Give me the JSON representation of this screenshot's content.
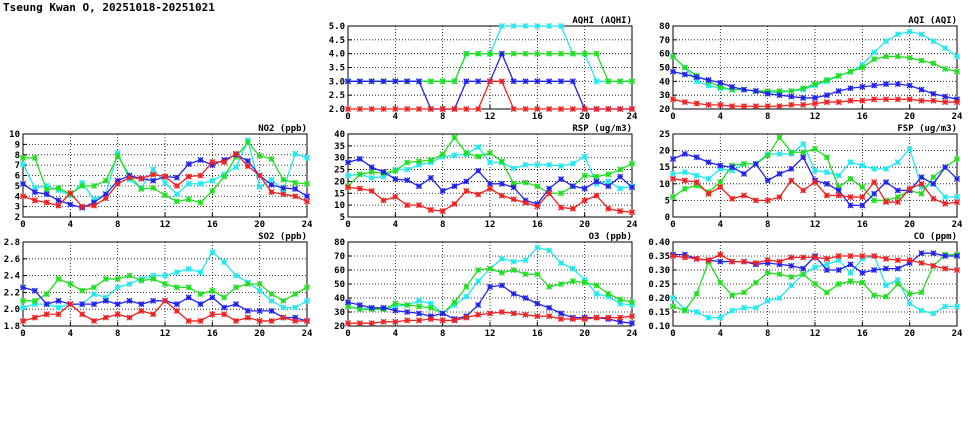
{
  "title": "Tseung Kwan O, 20251018-20251021",
  "colors": {
    "cyan": "#22e8f0",
    "green": "#22dd22",
    "blue": "#2222ee",
    "red": "#ee2222"
  },
  "chart_data": [
    {
      "id": "aqhi",
      "type": "line",
      "title": "AQHI (AQHI)",
      "ylim": [
        2.0,
        5.0
      ],
      "yticks": [
        2.0,
        2.5,
        3.0,
        3.5,
        4.0,
        4.5,
        5.0
      ],
      "ydec": 1,
      "xlim": [
        0,
        24
      ],
      "xticks": [
        0,
        4,
        8,
        12,
        16,
        20,
        24
      ],
      "series": [
        {
          "color": "cyan",
          "values": [
            3,
            3,
            3,
            3,
            3,
            3,
            3,
            3,
            3,
            3,
            4,
            4,
            4,
            5,
            5,
            5,
            5,
            5,
            5,
            4,
            4,
            3,
            3,
            3,
            3
          ]
        },
        {
          "color": "green",
          "values": [
            3,
            3,
            3,
            3,
            3,
            3,
            3,
            3,
            3,
            3,
            4,
            4,
            4,
            4,
            4,
            4,
            4,
            4,
            4,
            4,
            4,
            4,
            3,
            3,
            3
          ]
        },
        {
          "color": "blue",
          "values": [
            3,
            3,
            3,
            3,
            3,
            3,
            3,
            2,
            2,
            2,
            3,
            3,
            3,
            4,
            3,
            3,
            3,
            3,
            3,
            3,
            2,
            2,
            2,
            2,
            2
          ]
        },
        {
          "color": "red",
          "values": [
            2,
            2,
            2,
            2,
            2,
            2,
            2,
            2,
            2,
            2,
            2,
            2,
            3,
            3,
            2,
            2,
            2,
            2,
            2,
            2,
            2,
            2,
            2,
            2,
            2
          ]
        }
      ]
    },
    {
      "id": "aqi",
      "type": "line",
      "title": "AQI (AQI)",
      "ylim": [
        20,
        80
      ],
      "yticks": [
        20,
        30,
        40,
        50,
        60,
        70,
        80
      ],
      "ydec": 0,
      "xlim": [
        0,
        24
      ],
      "xticks": [
        0,
        4,
        8,
        12,
        16,
        20,
        24
      ],
      "series": [
        {
          "color": "cyan",
          "values": [
            58,
            50,
            40,
            37,
            35,
            34,
            34,
            33,
            32,
            32,
            33,
            34,
            37,
            40,
            44,
            47,
            52,
            61,
            69,
            74,
            76,
            74,
            69,
            64,
            58
          ]
        },
        {
          "color": "green",
          "values": [
            58,
            50,
            44,
            40,
            36,
            34,
            34,
            33,
            33,
            33,
            33,
            35,
            38,
            41,
            44,
            47,
            50,
            56,
            58,
            58,
            57,
            55,
            53,
            49,
            47
          ]
        },
        {
          "color": "blue",
          "values": [
            47,
            45,
            43,
            41,
            39,
            36,
            34,
            33,
            31,
            30,
            29,
            28,
            28,
            30,
            33,
            35,
            36,
            37,
            38,
            38,
            37,
            34,
            31,
            29,
            27
          ]
        },
        {
          "color": "red",
          "values": [
            27,
            25,
            24,
            23,
            23,
            22,
            22,
            22,
            22,
            22,
            23,
            23,
            24,
            25,
            25,
            26,
            26,
            27,
            27,
            27,
            27,
            26,
            26,
            25,
            25
          ]
        }
      ]
    },
    {
      "id": "no2",
      "type": "line",
      "title": "NO2 (ppb)",
      "ylim": [
        2,
        10
      ],
      "yticks": [
        2,
        3,
        4,
        5,
        6,
        7,
        8,
        9,
        10
      ],
      "ydec": 0,
      "xlim": [
        0,
        24
      ],
      "xticks": [
        0,
        4,
        8,
        12,
        16,
        20,
        24
      ],
      "series": [
        {
          "color": "cyan",
          "values": [
            7.1,
            4.8,
            5.0,
            4.6,
            4.1,
            5.3,
            3.7,
            4.2,
            8.2,
            5.6,
            4.8,
            6.6,
            5.3,
            4.2,
            5.2,
            5.2,
            5.5,
            6.1,
            6.8,
            9.4,
            4.9,
            5.6,
            4.6,
            8.1,
            7.7
          ]
        },
        {
          "color": "green",
          "values": [
            7.7,
            7.7,
            4.6,
            4.8,
            4.2,
            5.0,
            5.0,
            5.5,
            7.9,
            6.0,
            4.7,
            4.8,
            4.1,
            3.5,
            3.7,
            3.4,
            4.5,
            5.9,
            7.8,
            9.2,
            7.9,
            7.6,
            5.6,
            5.3,
            5.2
          ]
        },
        {
          "color": "blue",
          "values": [
            5.2,
            4.4,
            4.2,
            3.6,
            3.2,
            2.9,
            3.4,
            4.2,
            5.5,
            6.0,
            5.7,
            5.5,
            5.9,
            5.8,
            7.1,
            7.5,
            7.0,
            7.5,
            8.0,
            7.4,
            6.0,
            5.1,
            4.8,
            4.7,
            4.0
          ]
        },
        {
          "color": "red",
          "values": [
            4.0,
            3.6,
            3.4,
            3.1,
            4.3,
            3.0,
            3.1,
            3.8,
            5.2,
            5.8,
            5.7,
            6.1,
            5.9,
            5.0,
            5.9,
            6.0,
            7.3,
            7.3,
            8.1,
            6.9,
            6.0,
            4.4,
            4.2,
            4.0,
            3.5
          ]
        }
      ]
    },
    {
      "id": "rsp",
      "type": "line",
      "title": "RSP (ug/m3)",
      "ylim": [
        5,
        40
      ],
      "yticks": [
        5,
        10,
        15,
        20,
        25,
        30,
        35,
        40
      ],
      "ydec": 0,
      "xlim": [
        0,
        24
      ],
      "xticks": [
        0,
        4,
        8,
        12,
        16,
        20,
        24
      ],
      "series": [
        {
          "color": "cyan",
          "values": [
            22.5,
            23,
            21.5,
            22,
            25,
            25,
            27,
            28,
            30.5,
            31,
            31.5,
            34.5,
            28,
            28,
            25.5,
            27,
            27,
            27,
            26.5,
            27.5,
            30.5,
            19,
            20,
            17,
            18
          ]
        },
        {
          "color": "green",
          "values": [
            18,
            23,
            24,
            23.5,
            24.5,
            28,
            28.5,
            29,
            31.5,
            38.5,
            32,
            30.5,
            32,
            28.5,
            19,
            19.5,
            18,
            15,
            15,
            18,
            22.5,
            22,
            23,
            25,
            27.5
          ]
        },
        {
          "color": "blue",
          "values": [
            28,
            29.5,
            26,
            24,
            21,
            20.5,
            18,
            21.5,
            16,
            18,
            20,
            24.5,
            19,
            19,
            17.5,
            12,
            10.5,
            17,
            21,
            18,
            17,
            20,
            18,
            22,
            17.5
          ]
        },
        {
          "color": "red",
          "values": [
            17.5,
            17,
            16,
            12,
            13.5,
            10,
            10,
            8,
            7.5,
            10.5,
            16,
            14.5,
            17,
            14,
            12.5,
            11,
            9.5,
            15,
            9,
            8.5,
            12,
            14,
            8.5,
            7.5,
            7
          ]
        }
      ]
    },
    {
      "id": "fsp",
      "type": "line",
      "title": "FSP (ug/m3)",
      "ylim": [
        0,
        25
      ],
      "yticks": [
        0,
        5,
        10,
        15,
        20,
        25
      ],
      "ydec": 0,
      "xlim": [
        0,
        24
      ],
      "xticks": [
        0,
        4,
        8,
        12,
        16,
        20,
        24
      ],
      "series": [
        {
          "color": "cyan",
          "values": [
            13,
            13.5,
            12.5,
            11.5,
            14.5,
            14,
            16,
            16,
            19,
            19,
            19,
            22,
            14,
            13.5,
            12.5,
            16.5,
            15.5,
            14.5,
            14.5,
            16.5,
            20.5,
            9,
            10,
            6,
            6
          ]
        },
        {
          "color": "green",
          "values": [
            6,
            8.5,
            9.5,
            7.5,
            10.5,
            15.5,
            16,
            16,
            18.5,
            24,
            19.5,
            19.5,
            20.5,
            18,
            9,
            11.5,
            9,
            5,
            5,
            6,
            8,
            7,
            12,
            15,
            17.5
          ]
        },
        {
          "color": "blue",
          "values": [
            17.5,
            19,
            18,
            16.5,
            15.5,
            15,
            13,
            16,
            11,
            13,
            14.5,
            18,
            11,
            10,
            8,
            3.5,
            3.5,
            7,
            10.5,
            8,
            8,
            12,
            10,
            15,
            11.5
          ]
        },
        {
          "color": "red",
          "values": [
            11.5,
            11,
            10.5,
            7,
            9,
            5.5,
            6.5,
            5,
            5,
            6,
            11,
            8,
            10.5,
            6.5,
            6.5,
            6,
            6,
            10.5,
            4.5,
            4.5,
            8.5,
            10,
            5.5,
            4,
            4.5
          ]
        }
      ]
    },
    {
      "id": "so2",
      "type": "line",
      "title": "SO2 (ppb)",
      "ylim": [
        1.8,
        2.8
      ],
      "yticks": [
        1.8,
        2.0,
        2.2,
        2.4,
        2.6,
        2.8
      ],
      "ydec": 1,
      "xlim": [
        0,
        24
      ],
      "xticks": [
        0,
        4,
        8,
        12,
        16,
        20,
        24
      ],
      "series": [
        {
          "color": "cyan",
          "values": [
            2.02,
            2.06,
            2.06,
            2.02,
            2.06,
            2.06,
            2.18,
            2.14,
            2.26,
            2.3,
            2.36,
            2.4,
            2.4,
            2.44,
            2.48,
            2.44,
            2.68,
            2.56,
            2.4,
            2.32,
            2.22,
            2.1,
            2.02,
            2.02,
            2.1
          ]
        },
        {
          "color": "green",
          "values": [
            2.1,
            2.1,
            2.18,
            2.36,
            2.3,
            2.22,
            2.26,
            2.36,
            2.36,
            2.4,
            2.34,
            2.36,
            2.3,
            2.26,
            2.26,
            2.18,
            2.22,
            2.14,
            2.26,
            2.3,
            2.3,
            2.18,
            2.1,
            2.18,
            2.26
          ]
        },
        {
          "color": "blue",
          "values": [
            2.26,
            2.22,
            2.06,
            2.1,
            2.06,
            2.06,
            2.06,
            2.1,
            2.06,
            2.1,
            2.06,
            2.1,
            2.1,
            2.06,
            2.14,
            2.06,
            2.14,
            2.02,
            2.06,
            1.98,
            1.98,
            1.98,
            1.9,
            1.9,
            1.86
          ]
        },
        {
          "color": "red",
          "values": [
            1.86,
            1.9,
            1.94,
            1.94,
            2.06,
            1.94,
            1.86,
            1.9,
            1.94,
            1.9,
            1.98,
            1.94,
            2.1,
            1.98,
            1.86,
            1.86,
            1.94,
            1.94,
            1.86,
            1.9,
            1.86,
            1.86,
            1.9,
            1.86,
            1.86
          ]
        }
      ]
    },
    {
      "id": "o3",
      "type": "line",
      "title": "O3 (ppb)",
      "ylim": [
        20,
        80
      ],
      "yticks": [
        20,
        30,
        40,
        50,
        60,
        70,
        80
      ],
      "ydec": 0,
      "xlim": [
        0,
        24
      ],
      "xticks": [
        0,
        4,
        8,
        12,
        16,
        20,
        24
      ],
      "series": [
        {
          "color": "cyan",
          "values": [
            34,
            32,
            33,
            32,
            34,
            35,
            38,
            36,
            29,
            35,
            41,
            52,
            61,
            68,
            66,
            67,
            76,
            74,
            65,
            61,
            53,
            43,
            41,
            36,
            35
          ]
        },
        {
          "color": "green",
          "values": [
            34,
            32,
            32,
            32,
            36,
            35,
            34,
            33,
            29,
            37,
            48,
            60,
            61,
            58,
            60,
            57,
            57,
            48,
            50,
            52,
            51,
            49,
            43,
            39,
            37
          ]
        },
        {
          "color": "blue",
          "values": [
            37,
            35,
            33,
            33,
            31,
            30,
            29,
            27,
            29,
            25,
            27,
            35,
            48,
            49,
            43,
            40,
            36,
            33,
            29,
            26,
            26,
            26,
            25,
            23,
            22
          ]
        },
        {
          "color": "red",
          "values": [
            22,
            22,
            22,
            23,
            23,
            24,
            24,
            25,
            24,
            24,
            26,
            28,
            29,
            30,
            29,
            28,
            27,
            27,
            25,
            25,
            25,
            26,
            26,
            26,
            27
          ]
        }
      ]
    },
    {
      "id": "co",
      "type": "line",
      "title": "CO (ppm)",
      "ylim": [
        0.1,
        0.4
      ],
      "yticks": [
        0.1,
        0.15,
        0.2,
        0.25,
        0.3,
        0.35,
        0.4
      ],
      "ydec": 2,
      "xlim": [
        0,
        24
      ],
      "xticks": [
        0,
        4,
        8,
        12,
        16,
        20,
        24
      ],
      "series": [
        {
          "color": "cyan",
          "values": [
            0.2,
            0.16,
            0.15,
            0.13,
            0.13,
            0.155,
            0.165,
            0.165,
            0.19,
            0.2,
            0.245,
            0.285,
            0.31,
            0.32,
            0.335,
            0.29,
            0.34,
            0.35,
            0.245,
            0.265,
            0.18,
            0.155,
            0.145,
            0.17,
            0.17
          ]
        },
        {
          "color": "green",
          "values": [
            0.17,
            0.155,
            0.215,
            0.33,
            0.255,
            0.21,
            0.22,
            0.255,
            0.29,
            0.285,
            0.275,
            0.285,
            0.25,
            0.22,
            0.25,
            0.26,
            0.255,
            0.21,
            0.205,
            0.25,
            0.215,
            0.22,
            0.315,
            0.355,
            0.355
          ]
        },
        {
          "color": "blue",
          "values": [
            0.355,
            0.355,
            0.34,
            0.335,
            0.33,
            0.33,
            0.33,
            0.32,
            0.325,
            0.32,
            0.315,
            0.305,
            0.35,
            0.3,
            0.3,
            0.32,
            0.29,
            0.3,
            0.305,
            0.305,
            0.325,
            0.36,
            0.36,
            0.35,
            0.35
          ]
        },
        {
          "color": "red",
          "values": [
            0.35,
            0.345,
            0.34,
            0.335,
            0.355,
            0.33,
            0.33,
            0.325,
            0.335,
            0.33,
            0.345,
            0.345,
            0.345,
            0.34,
            0.35,
            0.35,
            0.35,
            0.35,
            0.34,
            0.335,
            0.335,
            0.325,
            0.315,
            0.305,
            0.3
          ]
        }
      ]
    }
  ]
}
